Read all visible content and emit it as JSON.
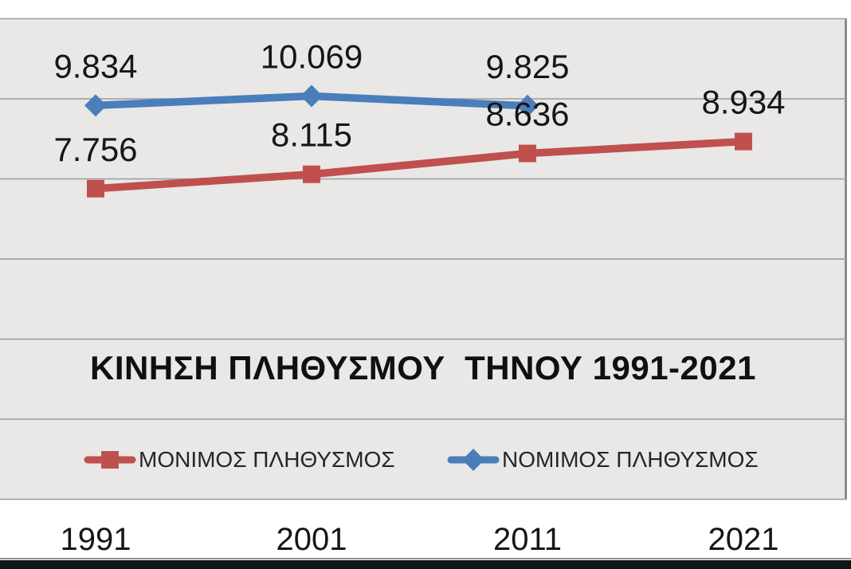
{
  "chart_data": {
    "type": "line",
    "title": "ΚΙΝΗΣΗ ΠΛΗΘΥΣΜΟΥ  ΤΗΝΟΥ 1991-2021",
    "categories": [
      "1991",
      "2001",
      "2011",
      "2021"
    ],
    "series": [
      {
        "name": "ΜΟΝΙΜΟΣ ΠΛΗΘΥΣΜΟΣ",
        "color": "#c0504d",
        "marker": "square",
        "values": [
          7756,
          8115,
          8636,
          8934
        ],
        "labels": [
          "7.756",
          "8.115",
          "8.636",
          "8.934"
        ]
      },
      {
        "name": "ΝΟΜΙΜΟΣ ΠΛΗΘΥΣΜΟΣ",
        "color": "#4a7ebb",
        "marker": "diamond",
        "values": [
          9834,
          10069,
          9825,
          null
        ],
        "labels": [
          "9.834",
          "10.069",
          "9.825",
          null
        ]
      }
    ],
    "xlabel": "",
    "ylabel": "",
    "ylim": [
      0,
      12000
    ],
    "gridline_step": 2000,
    "grid": true,
    "y_axis_labels_visible": false,
    "legend_position": "bottom",
    "plot_background": "#e9e8e6",
    "gridline_color": "#9b9b9b",
    "data_label_color": "#161616",
    "bottom_bar_color": "#11151a"
  }
}
